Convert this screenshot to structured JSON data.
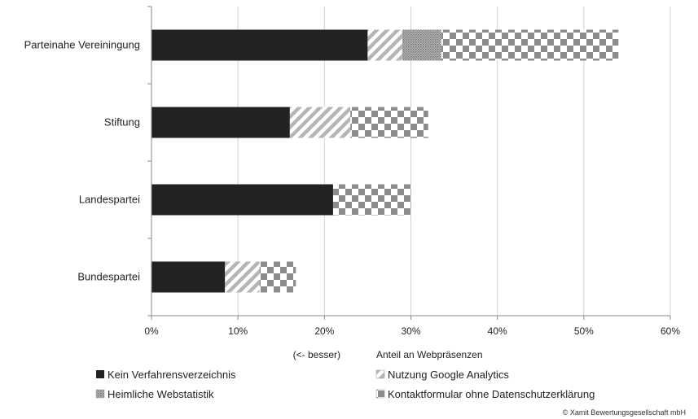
{
  "chart_data": {
    "type": "bar",
    "orientation": "horizontal",
    "stacked": true,
    "categories": [
      "Parteinahe Vereiningung",
      "Stiftung",
      "Landespartei",
      "Bundespartei"
    ],
    "series": [
      {
        "name": "Kein Verfahrensverzeichnis",
        "values": [
          25,
          16,
          21,
          8.5
        ],
        "pattern": "solid",
        "color": "#222222"
      },
      {
        "name": "Nutzung Google Analytics",
        "values": [
          4,
          7,
          0,
          4
        ],
        "pattern": "diagonal",
        "color": "#b5b5b5"
      },
      {
        "name": "Heimliche Webstatistik",
        "values": [
          4.5,
          0,
          0,
          0
        ],
        "pattern": "dots",
        "color": "#999999"
      },
      {
        "name": "Kontaktformular ohne Datenschutzerklärung",
        "values": [
          20.5,
          9,
          9,
          4.2
        ],
        "pattern": "checker",
        "color": "#8c8c8c"
      }
    ],
    "xlim": [
      0,
      60
    ],
    "x_ticks": [
      "0%",
      "10%",
      "20%",
      "30%",
      "40%",
      "50%",
      "60%"
    ],
    "x_tick_values": [
      0,
      10,
      20,
      30,
      40,
      50,
      60
    ],
    "xlabel_left": "(<- besser)",
    "xlabel": "Anteil an Webpräsenzen",
    "grid": "vertical",
    "legend_position": "bottom"
  },
  "copyright": "© Xamit Bewertungsgesellschaft mbH"
}
